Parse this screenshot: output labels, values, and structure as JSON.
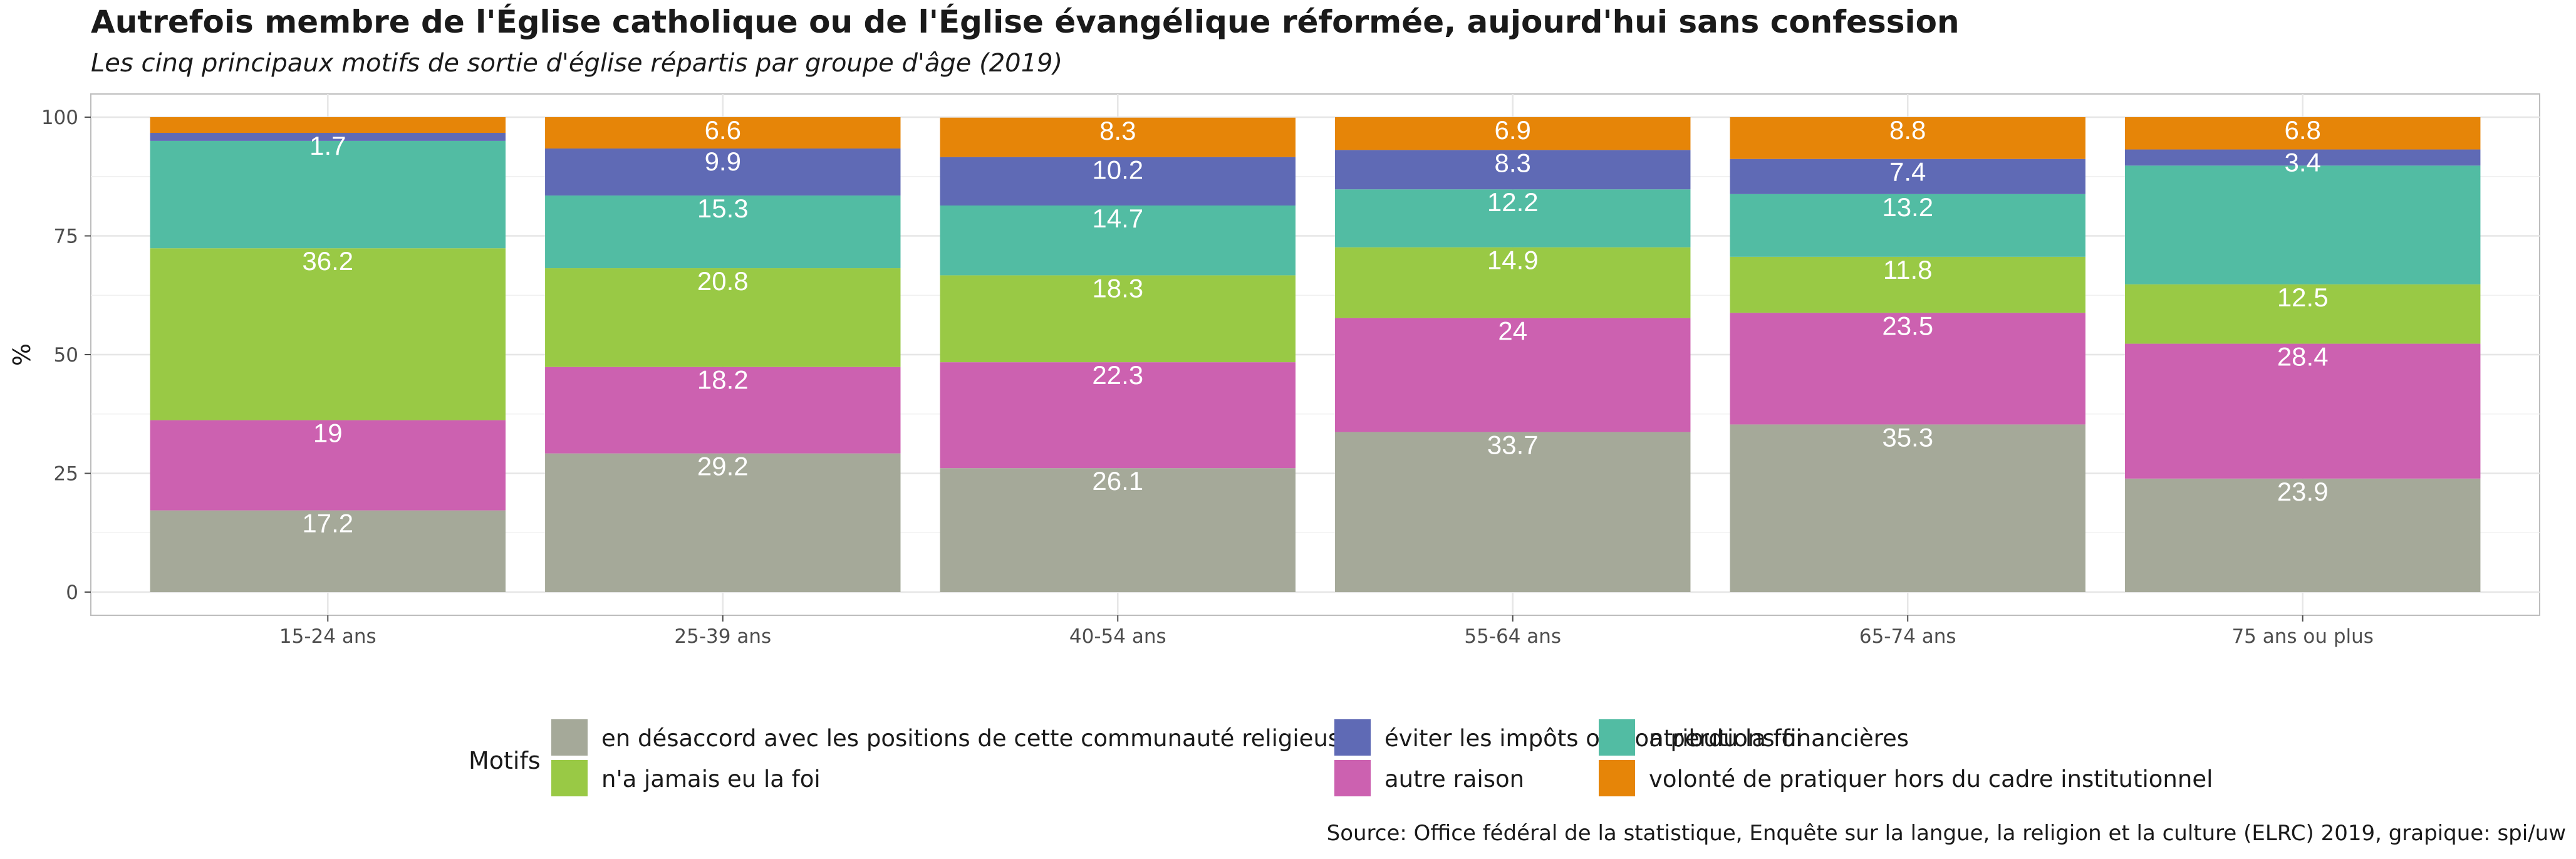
{
  "title": "Autrefois membre de l'Église catholique ou de l'Église évangélique réformée, aujourd'hui sans confession",
  "subtitle": "Les cinq principaux motifs de sortie d'église répartis par groupe d'âge  (2019)",
  "source": "Source: Office fédéral de la statistique, Enquête sur la langue, la religion et la culture (ELRC) 2019, grapique: spi/uw",
  "chart_data": {
    "type": "bar",
    "stacked": true,
    "title": "Autrefois membre de l'Église catholique ou de l'Église évangélique réformée, aujourd'hui sans confession",
    "subtitle": "Les cinq principaux motifs de sortie d'église répartis par groupe d'âge  (2019)",
    "xlabel": "",
    "ylabel": "%",
    "ylim": [
      0,
      100
    ],
    "yticks": [
      "0",
      "25",
      "50",
      "75",
      "100"
    ],
    "grid": true,
    "legend_position": "bottom",
    "legend_title": "Motifs",
    "categories": [
      "15-24 ans",
      "25-39 ans",
      "40-54 ans",
      "55-64 ans",
      "65-74 ans",
      "75 ans ou plus"
    ],
    "series": [
      {
        "name": "en désaccord avec les positions de cette communauté religieuse",
        "color": "#A5A999",
        "values": [
          17.2,
          29.2,
          26.1,
          33.7,
          35.3,
          23.9
        ]
      },
      {
        "name": "autre raison",
        "color": "#CC61B0",
        "values": [
          19,
          18.2,
          22.3,
          24,
          23.5,
          28.4
        ]
      },
      {
        "name": "n'a jamais eu la foi",
        "color": "#99C945",
        "values": [
          36.2,
          20.8,
          18.3,
          14.9,
          11.8,
          12.5
        ]
      },
      {
        "name": "a perdu la foi",
        "color": "#52BCA3",
        "values": [
          22.6,
          15.3,
          14.7,
          12.2,
          13.2,
          25.0
        ]
      },
      {
        "name": "éviter les impôts ou contributions financières",
        "color": "#5F6AB5",
        "values": [
          1.7,
          9.9,
          10.2,
          8.3,
          7.4,
          3.4
        ]
      },
      {
        "name": "volonté de pratiquer hors du cadre institutionnel",
        "color": "#E68508",
        "values": [
          3.3,
          6.6,
          8.3,
          6.9,
          8.8,
          6.8
        ]
      }
    ],
    "data_labels": [
      [
        "17.2",
        "29.2",
        "26.1",
        "33.7",
        "35.3",
        "23.9"
      ],
      [
        "19",
        "18.2",
        "22.3",
        "24",
        "23.5",
        "28.4"
      ],
      [
        "36.2",
        "20.8",
        "18.3",
        "14.9",
        "11.8",
        "12.5"
      ],
      [
        "",
        "15.3",
        "14.7",
        "12.2",
        "13.2",
        ""
      ],
      [
        "1.7",
        "9.9",
        "10.2",
        "8.3",
        "7.4",
        "3.4"
      ],
      [
        "",
        "6.6",
        "8.3",
        "6.9",
        "8.8",
        "6.8"
      ]
    ],
    "legend_order": [
      0,
      2,
      4,
      1,
      3,
      5
    ]
  }
}
